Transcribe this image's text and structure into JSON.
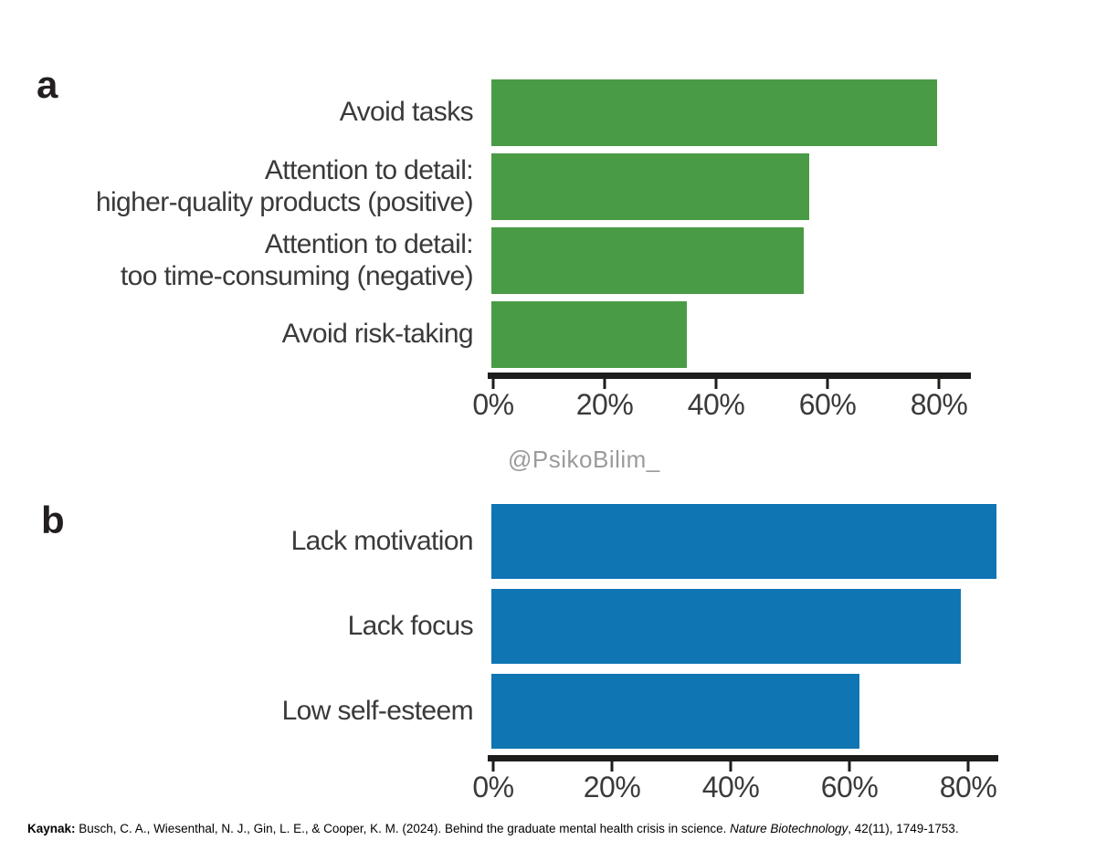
{
  "watermark": "@PsikoBilim_",
  "chart_data": [
    {
      "type": "bar",
      "orientation": "horizontal",
      "panel_label": "a",
      "categories": [
        "Avoid tasks",
        "Attention to detail:\nhigher-quality products (positive)",
        "Attention to detail:\ntoo time-consuming (negative)",
        "Avoid risk-taking"
      ],
      "values": [
        80,
        57,
        56,
        35
      ],
      "unit": "%",
      "bar_color": "#4A9B45",
      "axis_color": "#1d1d1b",
      "tick_values": [
        0,
        20,
        40,
        60,
        80
      ],
      "tick_labels": [
        "0%",
        "20%",
        "40%",
        "60%",
        "80%"
      ],
      "xlim": [
        0,
        86
      ],
      "grid": false,
      "legend": false
    },
    {
      "type": "bar",
      "orientation": "horizontal",
      "panel_label": "b",
      "categories": [
        "Lack motivation",
        "Lack focus",
        "Low self-esteem"
      ],
      "values": [
        85,
        79,
        62
      ],
      "unit": "%",
      "bar_color": "#0F75B3",
      "axis_color": "#1d1d1b",
      "tick_values": [
        0,
        20,
        40,
        60,
        80
      ],
      "tick_labels": [
        "0%",
        "20%",
        "40%",
        "60%",
        "80%"
      ],
      "xlim": [
        0,
        86
      ],
      "grid": false,
      "legend": false
    }
  ],
  "footer": {
    "label": "Kaynak:",
    "text_before": " Busch, C. A., Wiesenthal, N. J., Gin, L. E., & Cooper, K. M. (2024). Behind the graduate mental health crisis in science. ",
    "journal": "Nature Biotechnology",
    "text_after": ", 42(11), 1749-1753."
  }
}
